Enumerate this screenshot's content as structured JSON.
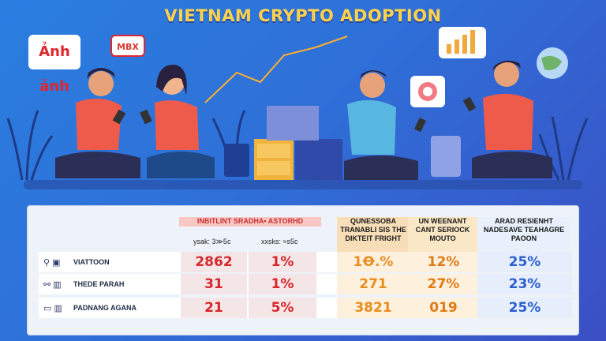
{
  "title": "VIETNAM CRYPTO ADOPTION",
  "bubbles": {
    "left_big": "Ảnh ảnh",
    "left_small": "MBX"
  },
  "table": {
    "header_main": "INBITLINT SRADHA• ASTORHD",
    "sub1": "ysak: 3≫5c",
    "sub2": "xxsks: ≈s5c",
    "col3": "QUNESSOBA TRANABLI SIS THE DIKTEIT FRIGHT",
    "col4": "UN WEENANT CANT SERIOCK MOUTO",
    "col5": "ARAD RESIENHT NADESAVE TEAHAGRE PAOON",
    "rows": [
      {
        "label": "VIATTOON",
        "v1": "2862",
        "v2": "1%",
        "v3": "1Ꝋ.%",
        "v4": "12%",
        "v5": "25%"
      },
      {
        "label": "THEDE PARAH",
        "v1": "31",
        "v2": "1%",
        "v3": "271",
        "v4": "27%",
        "v5": "23%"
      },
      {
        "label": "PADNANG AGANA",
        "v1": "21",
        "v2": "5%",
        "v3": "3821",
        "v4": "019",
        "v5": "25%"
      }
    ]
  },
  "colors": {
    "title": "#ffd34a",
    "red": "#d6262c",
    "orange": "#e98d1f",
    "blue": "#2a5fd0"
  }
}
